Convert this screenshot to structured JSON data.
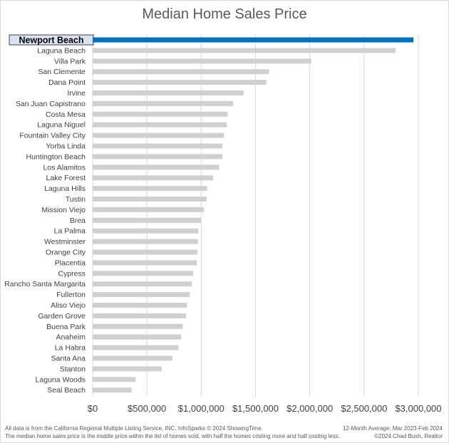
{
  "chart_data": {
    "type": "bar",
    "orientation": "horizontal",
    "title": "Median Home Sales Price",
    "highlight": {
      "category": "Newport Beach",
      "color": "#0070c0",
      "label_fill": "#dae3f3"
    },
    "bar_color": "#d0d0d0",
    "categories": [
      "Newport Beach",
      "Laguna Beach",
      "Villa Park",
      "San Clemente",
      "Dana Point",
      "Irvine",
      "San Juan Capistrano",
      "Costa Mesa",
      "Laguna Niguel",
      "Fountain Valley City",
      "Yorba Linda",
      "Huntington Beach",
      "Los Alamitos",
      "Lake Forest",
      "Laguna Hills",
      "Tustin",
      "Mission Viejo",
      "Brea",
      "La Palma",
      "Westminster",
      "Orange City",
      "Placentia",
      "Cypress",
      "Rancho Santa Margarita",
      "Fullerton",
      "Aliso Viejo",
      "Garden Grove",
      "Buena Park",
      "Anaheim",
      "La Habra",
      "Santa Ana",
      "Stanton",
      "Laguna Woods",
      "Seal Beach"
    ],
    "values": [
      2955000,
      2790000,
      2015000,
      1625000,
      1600000,
      1390000,
      1295000,
      1245000,
      1235000,
      1210000,
      1195000,
      1195000,
      1165000,
      1110000,
      1055000,
      1050000,
      1025000,
      1000000,
      975000,
      970000,
      965000,
      960000,
      925000,
      915000,
      895000,
      870000,
      860000,
      830000,
      815000,
      790000,
      735000,
      635000,
      395000,
      360000
    ],
    "xlim": [
      0,
      3000000
    ],
    "xticks": [
      0,
      500000,
      1000000,
      1500000,
      2000000,
      2500000,
      3000000
    ],
    "xtick_labels": [
      "$0",
      "$500,000",
      "$1,000,000",
      "$1,500,000",
      "$2,000,000",
      "$2,500,000",
      "$3,000,000"
    ],
    "grid": "vertical",
    "xlabel": "",
    "ylabel": ""
  },
  "footnotes": {
    "left_line1": "All data is from the California Regional Multiple Listing Service, INC. InfoSparks © 2024 ShowingTime.",
    "left_line2": "The median home sales price is the middle price within the list of homes sold, with half the homes costing more and half costing less.",
    "right_line1": "12-Month Average: Mar 2023-Feb 2024",
    "right_line2": "©2024 Chad Bush, Realtor"
  }
}
